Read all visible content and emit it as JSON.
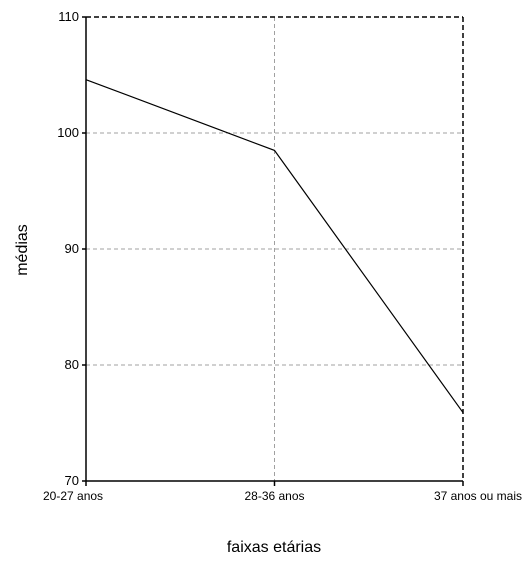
{
  "chart_data": {
    "type": "line",
    "title": "",
    "xlabel": "faixas etárias",
    "ylabel": "médias",
    "categories": [
      "20-27 anos",
      "28-36 anos",
      "37 anos ou mais"
    ],
    "series": [
      {
        "values": [
          104.6,
          98.5,
          75.9
        ]
      }
    ],
    "ylim": [
      70,
      110
    ],
    "yticks": [
      70,
      80,
      90,
      100,
      110
    ],
    "grid": true,
    "legend": "none"
  },
  "colors": {
    "line": "#000000",
    "grid": "#a0a0a0",
    "axis": "#000000"
  }
}
